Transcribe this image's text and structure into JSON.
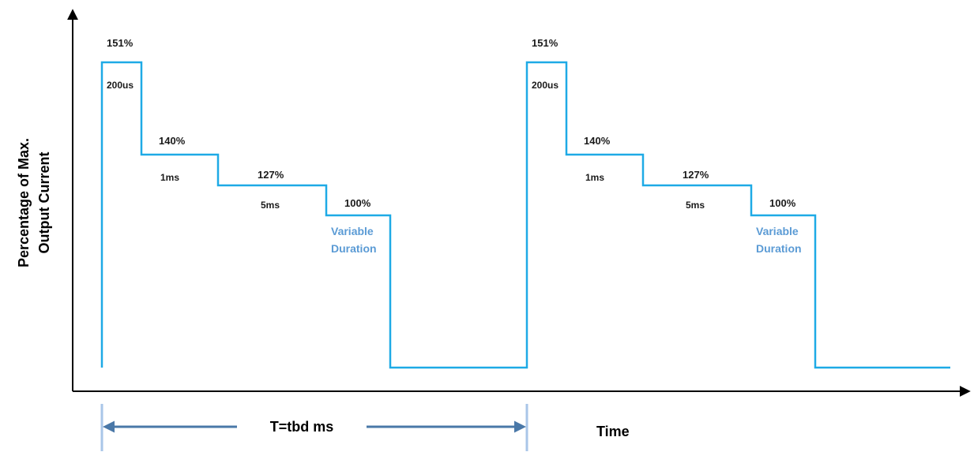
{
  "y_axis_label": {
    "line1": "Percentage of Max.",
    "line2": "Output Current"
  },
  "x_axis_label": "Time",
  "period_label": "T=tbd ms",
  "pulses": [
    {
      "step1": {
        "level": "151%",
        "duration": "200us"
      },
      "step2": {
        "level": "140%",
        "duration": "1ms"
      },
      "step3": {
        "level": "127%",
        "duration": "5ms"
      },
      "step4": {
        "level": "100%",
        "duration_line1": "Variable",
        "duration_line2": "Duration"
      }
    },
    {
      "step1": {
        "level": "151%",
        "duration": "200us"
      },
      "step2": {
        "level": "140%",
        "duration": "1ms"
      },
      "step3": {
        "level": "127%",
        "duration": "5ms"
      },
      "step4": {
        "level": "100%",
        "duration_line1": "Variable",
        "duration_line2": "Duration"
      }
    }
  ],
  "colors": {
    "waveform": "#1eaae6",
    "arrow": "#4a78a8",
    "tick": "#a9c6e8",
    "variable_text": "#5b9bd5",
    "axis": "#000000"
  }
}
